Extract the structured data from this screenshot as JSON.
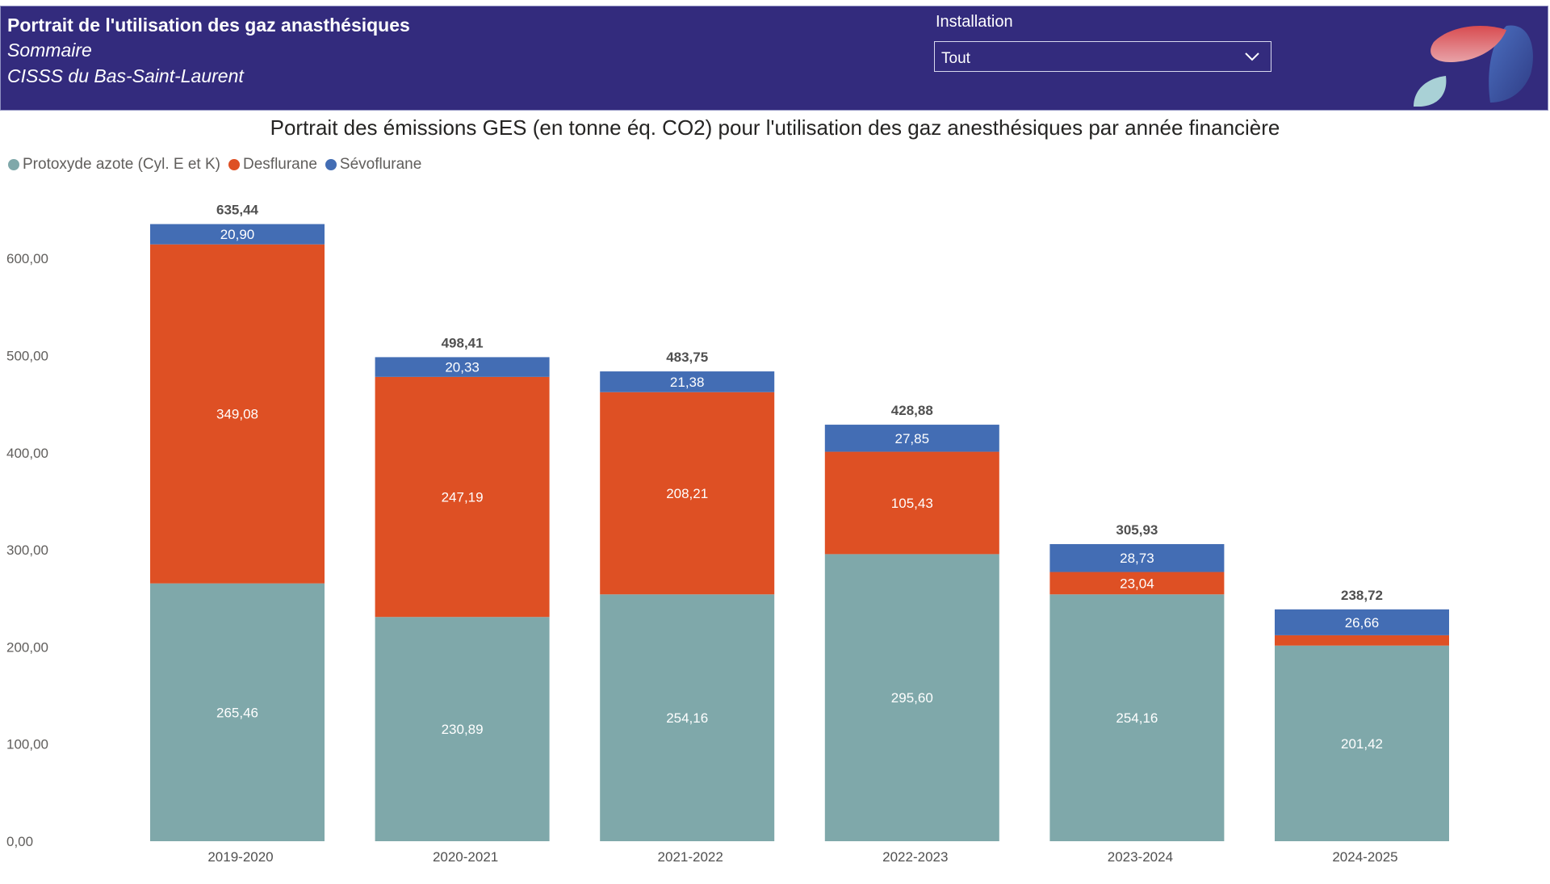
{
  "header": {
    "title": "Portrait de l'utilisation des gaz anasthésiques",
    "subtitle": "Sommaire",
    "organization": "CISSS du Bas-Saint-Laurent",
    "filter_label": "Installation",
    "filter_value": "Tout",
    "logo_icon": "leaf-petals-logo"
  },
  "chart_data": {
    "type": "bar",
    "stacked": true,
    "title": "Portrait des émissions GES (en tonne éq. CO2) pour l'utilisation des gaz anesthésiques par année financière",
    "xlabel": "",
    "ylabel": "",
    "ylim": [
      0,
      640
    ],
    "yticks": [
      "0,00",
      "100,00",
      "200,00",
      "300,00",
      "400,00",
      "500,00",
      "600,00"
    ],
    "ytick_values": [
      0,
      100,
      200,
      300,
      400,
      500,
      600
    ],
    "grid": false,
    "legend_placement": "top-left",
    "categories": [
      "2019-2020",
      "2020-2021",
      "2021-2022",
      "2022-2023",
      "2023-2024",
      "2024-2025"
    ],
    "series": [
      {
        "name": "Protoxyde azote (Cyl. E et K)",
        "color": "#7fa8aa",
        "values": [
          265.46,
          230.89,
          254.16,
          295.6,
          254.16,
          201.42
        ],
        "labels": [
          "265,46",
          "230,89",
          "254,16",
          "295,60",
          "254,16",
          "201,42"
        ]
      },
      {
        "name": "Desflurane",
        "color": "#de5024",
        "values": [
          349.08,
          247.19,
          208.21,
          105.43,
          23.04,
          10.64
        ],
        "labels": [
          "349,08",
          "247,19",
          "208,21",
          "105,43",
          "23,04",
          ""
        ]
      },
      {
        "name": "Sévoflurane",
        "color": "#436db4",
        "values": [
          20.9,
          20.33,
          21.38,
          27.85,
          28.73,
          26.66
        ],
        "labels": [
          "20,90",
          "20,33",
          "21,38",
          "27,85",
          "28,73",
          "26,66"
        ]
      }
    ],
    "totals": [
      635.44,
      498.41,
      483.75,
      428.88,
      305.93,
      238.72
    ],
    "total_labels": [
      "635,44",
      "498,41",
      "483,75",
      "428,88",
      "305,93",
      "238,72"
    ]
  }
}
